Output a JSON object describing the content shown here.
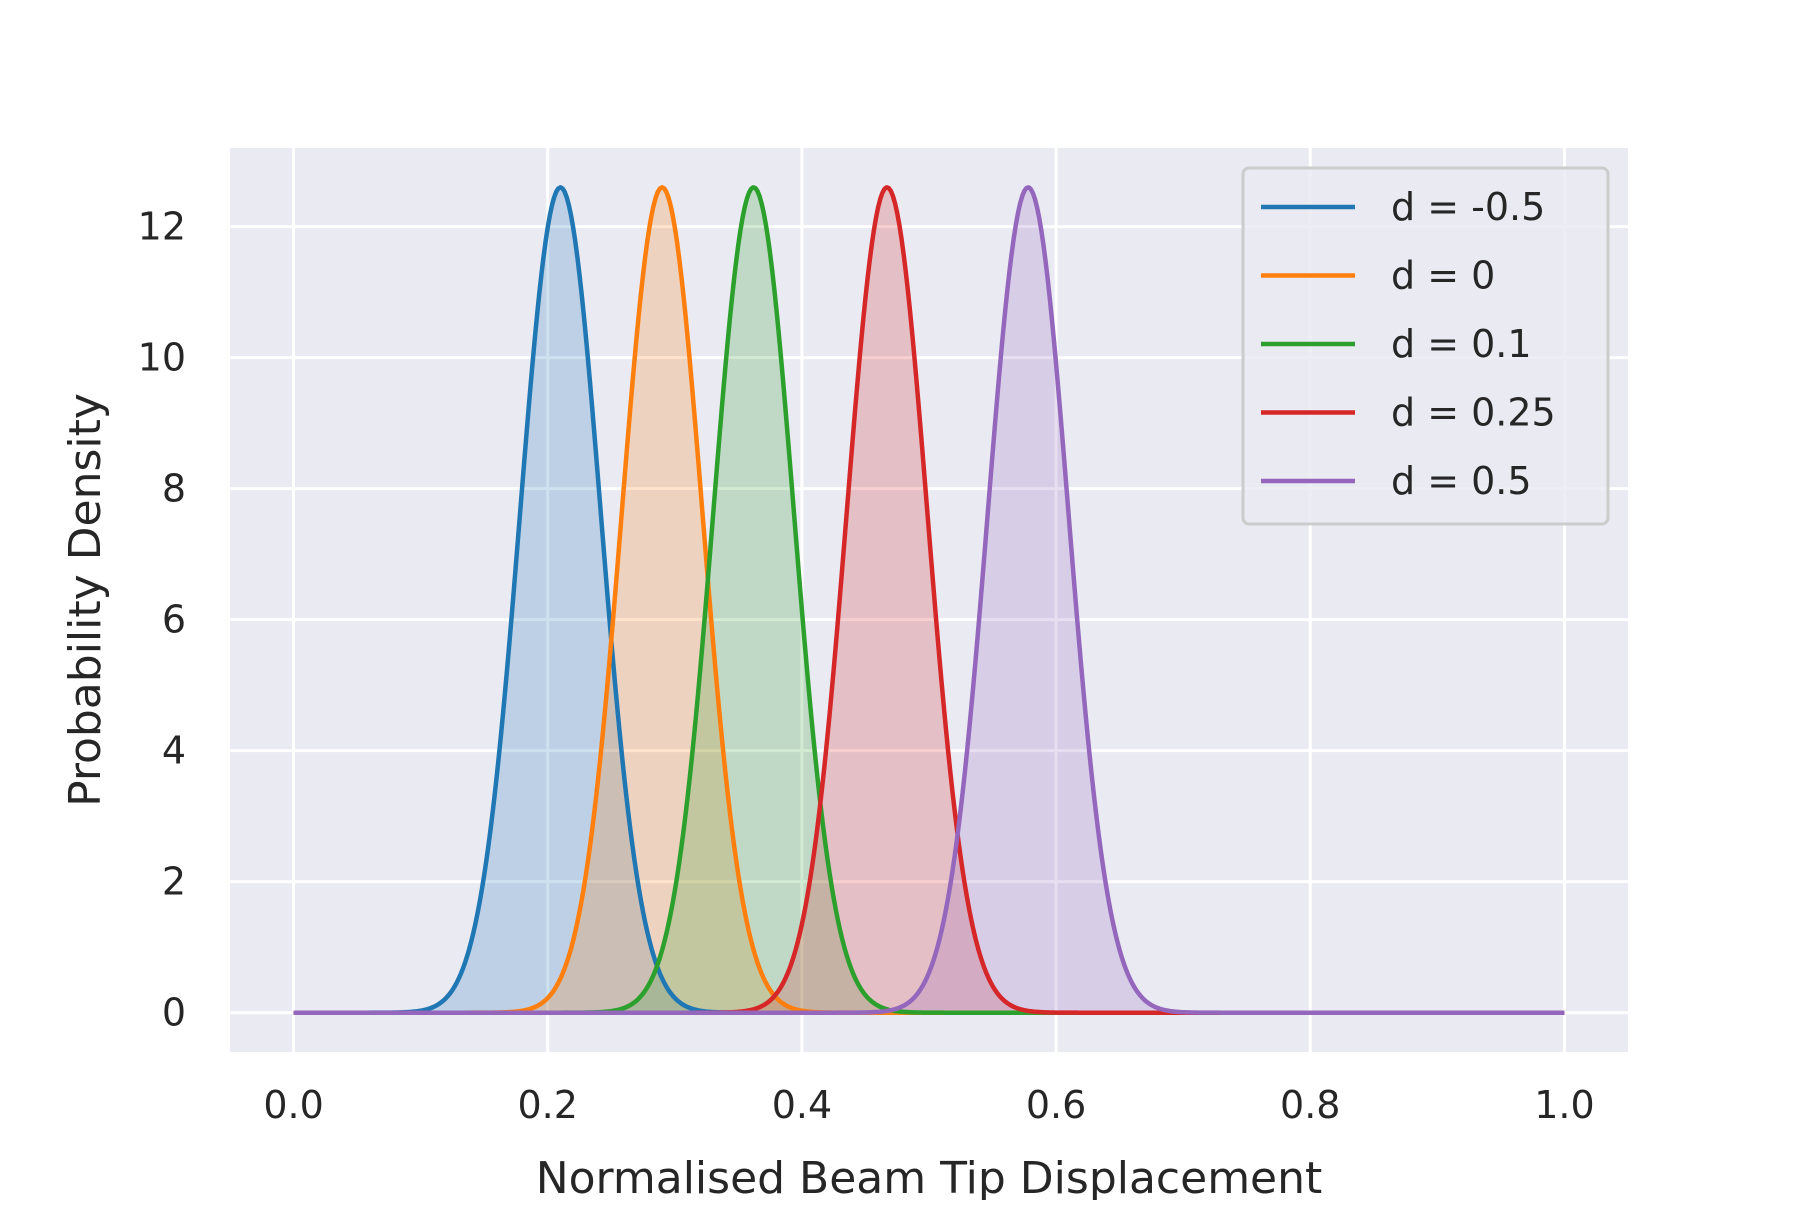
{
  "chart_data": {
    "type": "line",
    "title": "",
    "xlabel": "Normalised Beam Tip Displacement",
    "ylabel": "Probability Density",
    "xlim": [
      -0.05,
      1.05
    ],
    "ylim": [
      -0.6,
      13.2
    ],
    "xticks": [
      0.0,
      0.2,
      0.4,
      0.6,
      0.8,
      1.0
    ],
    "xtick_labels": [
      "0.0",
      "0.2",
      "0.4",
      "0.6",
      "0.8",
      "1.0"
    ],
    "yticks": [
      0,
      2,
      4,
      6,
      8,
      10,
      12
    ],
    "ytick_labels": [
      "0",
      "2",
      "4",
      "6",
      "8",
      "10",
      "12"
    ],
    "grid": true,
    "background": "#eaeaf2",
    "grid_color": "#ffffff",
    "legend_position": "top-right",
    "x_domain": [
      0.0,
      1.0
    ],
    "filled": true,
    "series": [
      {
        "name": "d = -0.5",
        "color": "#1f77b4",
        "mean": 0.21,
        "peak": 12.6,
        "std": 0.0317
      },
      {
        "name": "d = 0",
        "color": "#ff7f0e",
        "mean": 0.29,
        "peak": 12.6,
        "std": 0.0317
      },
      {
        "name": "d = 0.1",
        "color": "#2ca02c",
        "mean": 0.362,
        "peak": 12.6,
        "std": 0.0317
      },
      {
        "name": "d = 0.25",
        "color": "#d62728",
        "mean": 0.467,
        "peak": 12.6,
        "std": 0.0317
      },
      {
        "name": "d = 0.5",
        "color": "#9467bd",
        "mean": 0.578,
        "peak": 12.6,
        "std": 0.0317
      }
    ]
  }
}
